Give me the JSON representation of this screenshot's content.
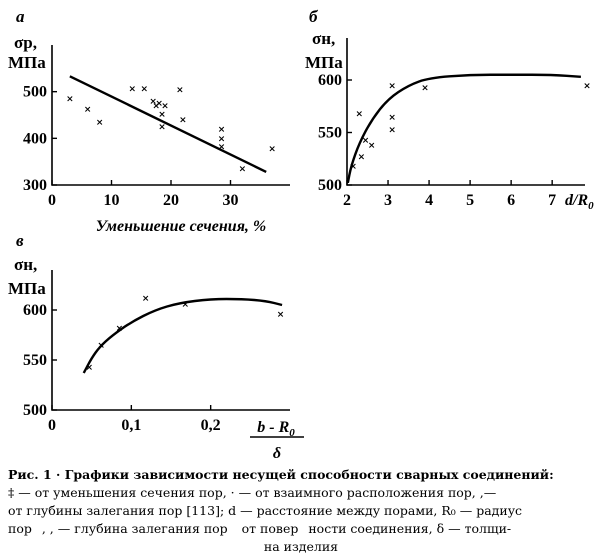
{
  "chart_data": [
    {
      "panel": "а",
      "type": "scatter",
      "ylabel": [
        "σр,",
        "МПа"
      ],
      "xlabel": "Уменьшение сечения, %",
      "xlim": [
        0,
        40
      ],
      "ylim": [
        300,
        600
      ],
      "xticks": [
        "0",
        "10",
        "20",
        "30"
      ],
      "yticks": [
        "300",
        "400",
        "500"
      ],
      "series": [
        {
          "kind": "points",
          "points": [
            [
              3,
              485
            ],
            [
              6,
              463
            ],
            [
              8,
              435
            ],
            [
              13.5,
              507
            ],
            [
              15.5,
              507
            ],
            [
              17,
              480
            ],
            [
              17.5,
              470
            ],
            [
              18,
              476
            ],
            [
              18.5,
              452
            ],
            [
              18.5,
              425
            ],
            [
              19,
              470
            ],
            [
              21.5,
              505
            ],
            [
              22,
              440
            ],
            [
              28.5,
              420
            ],
            [
              28.5,
              400
            ],
            [
              28.5,
              383
            ],
            [
              32,
              335
            ],
            [
              37,
              378
            ]
          ]
        },
        {
          "kind": "fit-line",
          "points": [
            [
              3,
              533
            ],
            [
              36,
              328
            ]
          ]
        }
      ]
    },
    {
      "panel": "б",
      "type": "scatter",
      "ylabel": [
        "σн,",
        "МПа"
      ],
      "xlabel": "d/R0",
      "xlim": [
        2,
        7.8
      ],
      "ylim": [
        500,
        640
      ],
      "xticks": [
        "2",
        "3",
        "4",
        "5",
        "6",
        "7"
      ],
      "yticks": [
        "500",
        "550",
        "600"
      ],
      "series": [
        {
          "kind": "points",
          "points": [
            [
              2.15,
              518
            ],
            [
              2.3,
              568
            ],
            [
              2.35,
              527
            ],
            [
              2.45,
              543
            ],
            [
              2.6,
              538
            ],
            [
              3.1,
              595
            ],
            [
              3.1,
              565
            ],
            [
              3.1,
              553
            ],
            [
              3.9,
              593
            ],
            [
              7.85,
              595
            ]
          ]
        },
        {
          "kind": "fit-curve",
          "points": [
            [
              2.02,
              502
            ],
            [
              2.1,
              518
            ],
            [
              2.3,
              540
            ],
            [
              2.6,
              562
            ],
            [
              3.0,
              582
            ],
            [
              3.5,
              595
            ],
            [
              4.0,
              602
            ],
            [
              5.0,
              605
            ],
            [
              6.0,
              605
            ],
            [
              7.0,
              605
            ],
            [
              7.7,
              603
            ]
          ]
        }
      ]
    },
    {
      "panel": "в",
      "type": "scatter",
      "ylabel": [
        "σн,",
        "МПа"
      ],
      "xlabel_num": "b - R0",
      "xlabel_den": "δ",
      "xlim": [
        0,
        0.3
      ],
      "ylim": [
        500,
        640
      ],
      "xticks": [
        "0",
        "0,1",
        "0,2"
      ],
      "yticks": [
        "500",
        "550",
        "600"
      ],
      "series": [
        {
          "kind": "points",
          "points": [
            [
              0.047,
              543
            ],
            [
              0.062,
              565
            ],
            [
              0.085,
              582
            ],
            [
              0.118,
              612
            ],
            [
              0.168,
              606
            ],
            [
              0.288,
              596
            ]
          ]
        },
        {
          "kind": "fit-curve",
          "points": [
            [
              0.04,
              537
            ],
            [
              0.05,
              552
            ],
            [
              0.06,
              563
            ],
            [
              0.075,
              574
            ],
            [
              0.1,
              588
            ],
            [
              0.13,
              600
            ],
            [
              0.16,
              607
            ],
            [
              0.2,
              611
            ],
            [
              0.24,
              611
            ],
            [
              0.27,
              609
            ],
            [
              0.29,
              605
            ]
          ]
        }
      ]
    }
  ],
  "caption": {
    "line1_bold": "Рис.    1 · Графики зависимости несущей способности сварных соединений:",
    "line2": "‡ — от уменьшения сечения пор, · — от взаимного расположения пор, ,—",
    "line3": "от глубины залегания пор [113]; d — расстояние между порами, R₀ — радиус",
    "line4": "пор,   , — глубина залегания пор от поверности соединения, δ — толщи-",
    "line5": "на изделия"
  }
}
